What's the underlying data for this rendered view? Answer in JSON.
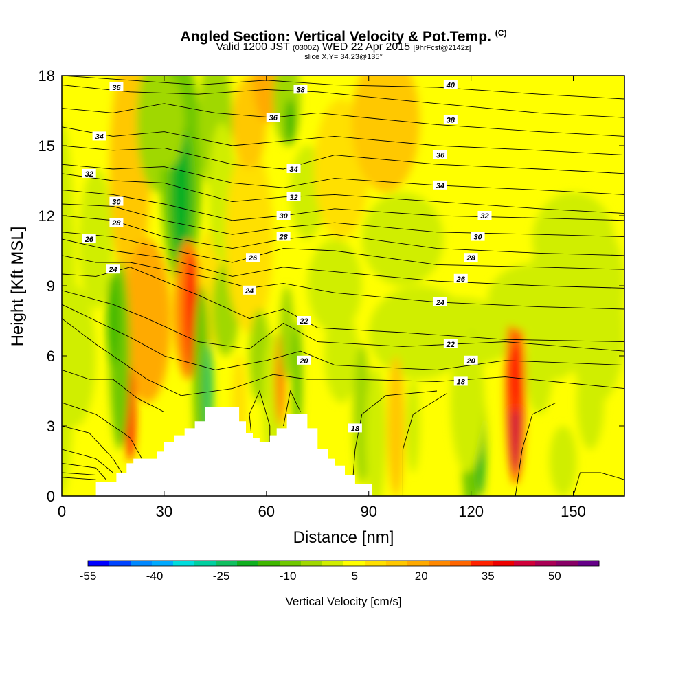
{
  "header": {
    "title": "Angled Section: Vertical Velocity & Pot.Temp.",
    "title_unit": "(C)",
    "valid_prefix": "Valid 1200 JST",
    "valid_utc": "(0300Z)",
    "valid_date": "WED 22 Apr 2015",
    "forecast": "[9hrFcst@2142z]",
    "slice": "slice X,Y= 34,23@135°"
  },
  "chart_data": {
    "type": "heatmap",
    "xlabel": "Distance [nm]",
    "ylabel": "Height [Kft MSL]",
    "xlim": [
      0,
      165
    ],
    "ylim": [
      0,
      18
    ],
    "x_ticks": [
      "0",
      "30",
      "60",
      "90",
      "120",
      "150"
    ],
    "x_tick_values": [
      0,
      30,
      60,
      90,
      120,
      150
    ],
    "y_ticks": [
      "0",
      "3",
      "6",
      "9",
      "12",
      "15",
      "18"
    ],
    "y_tick_values": [
      0,
      3,
      6,
      9,
      12,
      15,
      18
    ],
    "colorbar": {
      "label": "Vertical Velocity [cm/s]",
      "tick_labels": [
        "-55",
        "-40",
        "-25",
        "-10",
        "5",
        "20",
        "35",
        "50"
      ],
      "min": -55,
      "max": 55,
      "step": 5,
      "colors": [
        "#0000ff",
        "#0044ff",
        "#0088ff",
        "#00aaff",
        "#00dddd",
        "#00d0a0",
        "#10c060",
        "#10b020",
        "#40b800",
        "#70c800",
        "#a0d800",
        "#d0ee00",
        "#ffff00",
        "#ffe000",
        "#ffc800",
        "#ffaa00",
        "#ff8800",
        "#ff6600",
        "#ff2200",
        "#ee0000",
        "#d0003a",
        "#aa0055",
        "#880066",
        "#660088"
      ]
    },
    "theta_contour_labels": [
      {
        "x": 16,
        "y": 17.5,
        "v": "36"
      },
      {
        "x": 11,
        "y": 15.4,
        "v": "34"
      },
      {
        "x": 8,
        "y": 13.8,
        "v": "32"
      },
      {
        "x": 16,
        "y": 12.6,
        "v": "30"
      },
      {
        "x": 16,
        "y": 11.7,
        "v": "28"
      },
      {
        "x": 8,
        "y": 11.0,
        "v": "26"
      },
      {
        "x": 15,
        "y": 9.7,
        "v": "24"
      },
      {
        "x": 70,
        "y": 17.4,
        "v": "38"
      },
      {
        "x": 62,
        "y": 16.2,
        "v": "36"
      },
      {
        "x": 68,
        "y": 14.0,
        "v": "34"
      },
      {
        "x": 68,
        "y": 12.8,
        "v": "32"
      },
      {
        "x": 65,
        "y": 12.0,
        "v": "30"
      },
      {
        "x": 65,
        "y": 11.1,
        "v": "28"
      },
      {
        "x": 56,
        "y": 10.2,
        "v": "26"
      },
      {
        "x": 55,
        "y": 8.8,
        "v": "24"
      },
      {
        "x": 71,
        "y": 7.5,
        "v": "22"
      },
      {
        "x": 71,
        "y": 5.8,
        "v": "20"
      },
      {
        "x": 86,
        "y": 2.9,
        "v": "18"
      },
      {
        "x": 114,
        "y": 17.6,
        "v": "40"
      },
      {
        "x": 114,
        "y": 16.1,
        "v": "38"
      },
      {
        "x": 111,
        "y": 14.6,
        "v": "36"
      },
      {
        "x": 111,
        "y": 13.3,
        "v": "34"
      },
      {
        "x": 124,
        "y": 12.0,
        "v": "32"
      },
      {
        "x": 122,
        "y": 11.1,
        "v": "30"
      },
      {
        "x": 120,
        "y": 10.2,
        "v": "28"
      },
      {
        "x": 117,
        "y": 9.3,
        "v": "26"
      },
      {
        "x": 111,
        "y": 8.3,
        "v": "24"
      },
      {
        "x": 114,
        "y": 6.5,
        "v": "22"
      },
      {
        "x": 120,
        "y": 5.8,
        "v": "20"
      },
      {
        "x": 117,
        "y": 4.9,
        "v": "18"
      }
    ]
  }
}
